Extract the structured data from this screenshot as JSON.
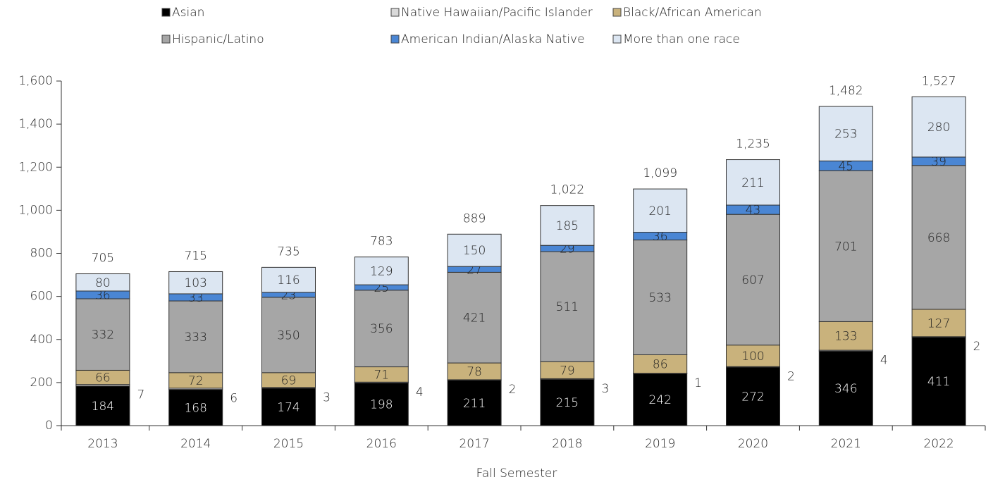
{
  "chart_data": {
    "type": "stacked_bar",
    "x_label": "Fall Semester",
    "categories": [
      "2013",
      "2014",
      "2015",
      "2016",
      "2017",
      "2018",
      "2019",
      "2020",
      "2021",
      "2022"
    ],
    "series": [
      {
        "name": "Asian",
        "color": "#000000",
        "values": [
          184,
          168,
          174,
          198,
          211,
          215,
          242,
          272,
          346,
          411
        ]
      },
      {
        "name": "Native Hawaiian/Pacific Islander",
        "color": "#d9d9d9",
        "values": [
          7,
          6,
          3,
          4,
          2,
          3,
          1,
          2,
          4,
          2
        ]
      },
      {
        "name": "Black/African American",
        "color": "#c9b27c",
        "values": [
          66,
          72,
          69,
          71,
          78,
          79,
          86,
          100,
          133,
          127
        ]
      },
      {
        "name": "Hispanic/Latino",
        "color": "#a6a6a6",
        "values": [
          332,
          333,
          350,
          356,
          421,
          511,
          533,
          607,
          701,
          668
        ]
      },
      {
        "name": "American Indian/Alaska Native",
        "color": "#4a86d4",
        "values": [
          36,
          33,
          23,
          25,
          27,
          29,
          36,
          43,
          45,
          39
        ]
      },
      {
        "name": "More than one race",
        "color": "#dce6f2",
        "values": [
          80,
          103,
          116,
          129,
          150,
          185,
          201,
          211,
          253,
          280
        ]
      }
    ],
    "totals": {
      "values": [
        705,
        715,
        735,
        783,
        889,
        1022,
        1099,
        1235,
        1482,
        1527
      ],
      "value_labels": [
        "705",
        "715",
        "735",
        "783",
        "889",
        "1,022",
        "1,099",
        "1,235",
        "1,482",
        "1,527"
      ]
    },
    "ylim": [
      0,
      1600
    ],
    "yticks": [
      0,
      200,
      400,
      600,
      800,
      {
        "value": 1000,
        "label": "1,000"
      },
      {
        "value": 1200,
        "label": "1,200"
      },
      {
        "value": 1400,
        "label": "1,400"
      },
      {
        "value": 1600,
        "label": "1,600"
      }
    ],
    "legend": "top"
  }
}
